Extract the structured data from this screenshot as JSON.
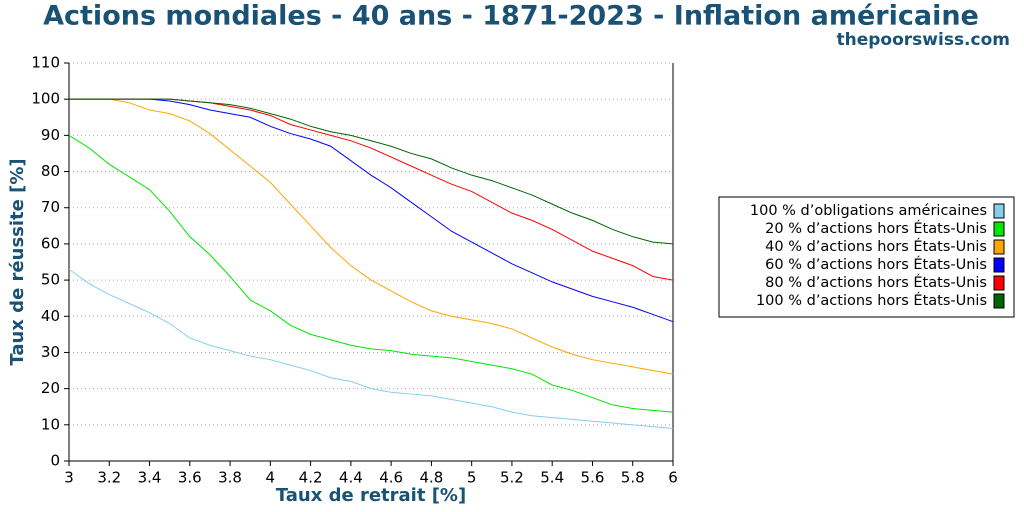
{
  "chart_data": {
    "type": "line",
    "title": "Actions mondiales - 40 ans - 1871-2023 - Inflation américaine",
    "subtitle": "thepoorswiss.com",
    "x_label": "Taux de retrait [%]",
    "y_label": "Taux de réussite [%]",
    "x": [
      3,
      3.1,
      3.2,
      3.3,
      3.4,
      3.5,
      3.6,
      3.7,
      3.8,
      3.9,
      4,
      4.1,
      4.2,
      4.3,
      4.4,
      4.5,
      4.6,
      4.7,
      4.8,
      4.9,
      5,
      5.1,
      5.2,
      5.3,
      5.4,
      5.5,
      5.6,
      5.7,
      5.8,
      5.9,
      6
    ],
    "xlim": [
      3,
      6
    ],
    "xticks": [
      3,
      3.2,
      3.4,
      3.6,
      3.8,
      4,
      4.2,
      4.4,
      4.6,
      4.8,
      5,
      5.2,
      5.4,
      5.6,
      5.8,
      6
    ],
    "ylim": [
      0,
      110
    ],
    "yticks": [
      0,
      10,
      20,
      30,
      40,
      50,
      60,
      70,
      80,
      90,
      100,
      110
    ],
    "grid": true,
    "legend": "right",
    "series": [
      {
        "name": "100 % d’obligations américaines",
        "color": "#87ceeb",
        "values": [
          53,
          49,
          46,
          43.5,
          41,
          38,
          34,
          32,
          30.5,
          29,
          28,
          26.5,
          25,
          23,
          22,
          20,
          19,
          18.5,
          18,
          17,
          16,
          15,
          13.5,
          12.5,
          12,
          11.5,
          11,
          10.5,
          10,
          9.5,
          9
        ]
      },
      {
        "name": "20 % d’actions hors États-Unis",
        "color": "#00e600",
        "values": [
          90,
          86.5,
          82,
          78.5,
          75,
          69,
          62,
          57,
          51,
          44.5,
          41.5,
          37.5,
          35,
          33.5,
          32,
          31,
          30.5,
          29.5,
          29,
          28.5,
          27.5,
          26.5,
          25.5,
          24,
          21,
          19.5,
          17.5,
          15.5,
          14.5,
          14,
          13.5
        ]
      },
      {
        "name": "40 % d’actions hors États-Unis",
        "color": "#ffa500",
        "values": [
          100,
          100,
          100,
          99,
          97,
          96,
          94,
          90.5,
          86,
          81.5,
          77,
          71,
          65,
          59,
          54,
          50,
          47,
          44,
          41.5,
          40,
          39,
          38,
          36.5,
          34,
          31.5,
          29.5,
          28,
          27,
          26,
          25,
          24
        ]
      },
      {
        "name": "60 % d’actions hors États-Unis",
        "color": "#0000ff",
        "values": [
          100,
          100,
          100,
          100,
          100,
          99.5,
          98.5,
          97,
          96,
          95,
          92.5,
          90.5,
          89,
          87,
          83,
          79,
          75.5,
          71.5,
          67.5,
          63.5,
          60.5,
          57.5,
          54.5,
          52,
          49.5,
          47.5,
          45.5,
          44,
          42.5,
          40.5,
          38.5
        ]
      },
      {
        "name": "80 % d’actions hors États-Unis",
        "color": "#ff0000",
        "values": [
          100,
          100,
          100,
          100,
          100,
          100,
          99.5,
          99,
          98,
          97,
          95.5,
          93,
          91.5,
          90,
          88.5,
          86.5,
          84,
          81.5,
          79,
          76.5,
          74.5,
          71.5,
          68.5,
          66.5,
          64,
          61,
          58,
          56,
          54,
          51,
          50
        ]
      },
      {
        "name": "100 % d’actions hors États-Unis",
        "color": "#006400",
        "values": [
          100,
          100,
          100,
          100,
          100,
          100,
          99.5,
          99,
          98.5,
          97.5,
          96,
          94.5,
          92.5,
          91,
          90,
          88.5,
          87,
          85,
          83.5,
          81,
          79,
          77.5,
          75.5,
          73.5,
          71,
          68.5,
          66.5,
          64,
          62,
          60.5,
          60
        ]
      }
    ]
  }
}
